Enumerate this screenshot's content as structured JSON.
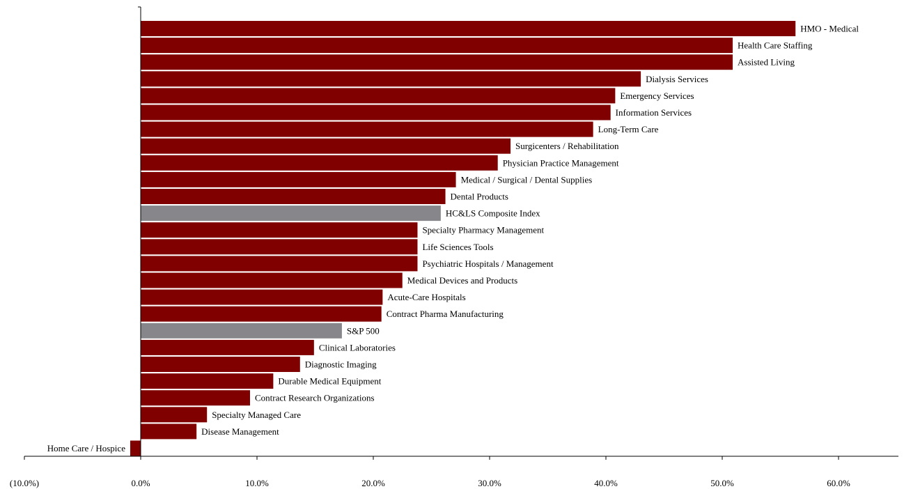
{
  "chart_data": {
    "type": "bar",
    "orientation": "horizontal",
    "title": "",
    "xlabel": "",
    "ylabel": "",
    "xlim": [
      -10,
      65
    ],
    "x_ticks": [
      -10,
      0,
      10,
      20,
      30,
      40,
      50,
      60
    ],
    "x_tick_labels": [
      "(10.0%)",
      "0.0%",
      "10.0%",
      "20.0%",
      "30.0%",
      "40.0%",
      "50.0%",
      "60.0%"
    ],
    "grid": false,
    "legend": "none",
    "colors": {
      "default": "#800000",
      "benchmark": "#87878b"
    },
    "categories": [
      "HMO - Medical",
      "Health Care Staffing",
      "Assisted Living",
      "Dialysis Services",
      "Emergency Services",
      "Information Services",
      "Long-Term Care",
      "Surgicenters / Rehabilitation",
      "Physician Practice Management",
      "Medical / Surgical / Dental Supplies",
      "Dental Products",
      "HC&LS Composite Index",
      "Specialty Pharmacy Management",
      "Life Sciences Tools",
      "Psychiatric Hospitals / Management",
      "Medical Devices and Products",
      "Acute-Care Hospitals",
      "Contract Pharma Manufacturing",
      "S&P 500",
      "Clinical Laboratories",
      "Diagnostic Imaging",
      "Durable Medical Equipment",
      "Contract Research Organizations",
      "Specialty Managed Care",
      "Disease Management",
      "Home Care / Hospice"
    ],
    "values": [
      56.3,
      50.9,
      50.9,
      43.0,
      40.8,
      40.4,
      38.9,
      31.8,
      30.7,
      27.1,
      26.2,
      25.8,
      23.8,
      23.8,
      23.8,
      22.5,
      20.8,
      20.7,
      17.3,
      14.9,
      13.7,
      11.4,
      9.4,
      5.7,
      4.8,
      -0.9
    ],
    "benchmark_categories": [
      "HC&LS Composite Index",
      "S&P 500"
    ]
  }
}
